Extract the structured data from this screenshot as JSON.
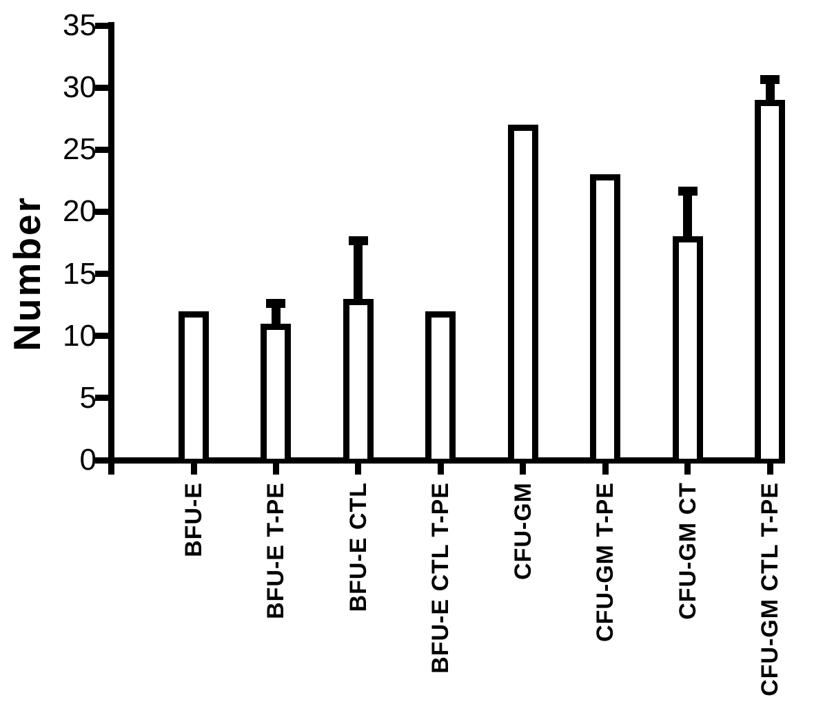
{
  "chart_data": {
    "type": "bar",
    "title": "",
    "ylabel": "Number",
    "xlabel": "",
    "categories": [
      "BFU-E",
      "BFU-E T-PE",
      "BFU-E CTL",
      "BFU-E CTL T-PE",
      "CFU-GM",
      "CFU-GM T-PE",
      "CFU-GM CT",
      "CFU-GM CTL T-PE"
    ],
    "values": [
      12,
      11,
      13,
      12,
      27,
      23,
      18,
      29
    ],
    "error_plus": [
      0,
      2,
      5,
      0,
      0,
      0,
      4,
      2
    ],
    "error_bar_tops": [
      null,
      13,
      18,
      null,
      null,
      null,
      22,
      31
    ],
    "ylim": [
      0,
      35
    ],
    "yticks": [
      0,
      5,
      10,
      15,
      20,
      25,
      30,
      35
    ],
    "grid": false,
    "legend": false,
    "colors": {
      "bar_fill": "#ffffff",
      "stroke": "#000000",
      "background": "#ffffff"
    }
  }
}
